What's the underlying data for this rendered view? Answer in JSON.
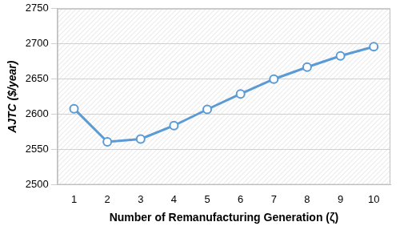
{
  "chart_data": {
    "type": "line",
    "x_label": "Number of Remanufacturing Generation (ζ)",
    "y_label": "AJTC ($/year)",
    "categories": [
      "1",
      "2",
      "3",
      "4",
      "5",
      "6",
      "7",
      "8",
      "9",
      "10"
    ],
    "values": [
      2608,
      2561,
      2565,
      2584,
      2607,
      2629,
      2650,
      2667,
      2683,
      2696
    ],
    "color": "#5b9bd5",
    "marker": "circle",
    "ylim": [
      2500,
      2750
    ],
    "yticks": [
      2500,
      2550,
      2600,
      2650,
      2700,
      2750
    ],
    "grid": true
  }
}
